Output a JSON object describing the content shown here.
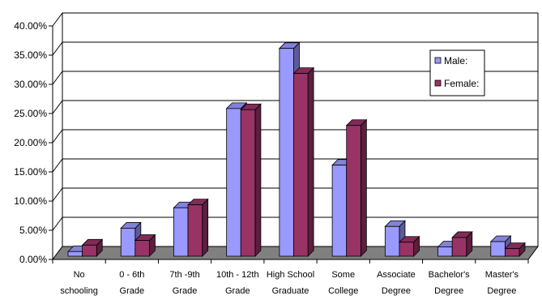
{
  "chart_data": {
    "type": "bar",
    "three_d": true,
    "categories": [
      [
        "No",
        "schooling"
      ],
      [
        "0 - 6th",
        "Grade"
      ],
      [
        "7th -9th",
        "Grade"
      ],
      [
        "10th - 12th",
        "Grade"
      ],
      [
        "High School",
        "Graduate"
      ],
      [
        "Some",
        "College"
      ],
      [
        "Associate",
        "Degree"
      ],
      [
        "Bachelor's",
        "Degree"
      ],
      [
        "Master's",
        "Degree"
      ]
    ],
    "series": [
      {
        "name": "Male:",
        "color": "#9999ff",
        "values": [
          0.8,
          4.8,
          8.3,
          25.3,
          35.6,
          15.6,
          5.1,
          1.6,
          2.5
        ]
      },
      {
        "name": "Female:",
        "color": "#993366",
        "values": [
          1.9,
          2.7,
          8.8,
          25.1,
          31.3,
          22.4,
          2.4,
          3.2,
          1.3
        ]
      }
    ],
    "y_ticks": [
      "0.00%",
      "5.00%",
      "10.00%",
      "15.00%",
      "20.00%",
      "25.00%",
      "30.00%",
      "35.00%",
      "40.00%"
    ],
    "ylim": [
      0,
      40
    ],
    "grid": true,
    "legend_position": "right",
    "floor_color": "#808080"
  }
}
